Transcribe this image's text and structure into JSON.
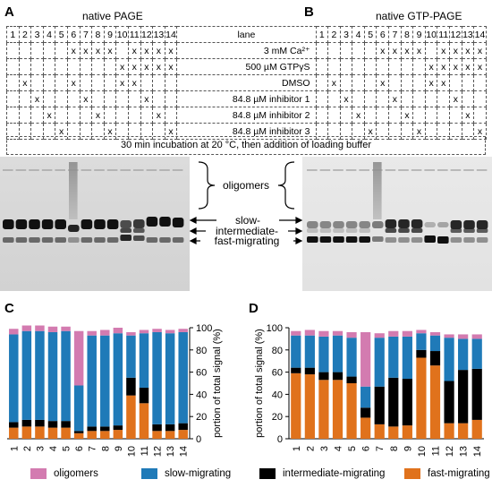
{
  "figure": {
    "panels": {
      "A": "A",
      "B": "B",
      "C": "C",
      "D": "D"
    },
    "gel_a_title": "native PAGE",
    "gel_b_title": "native GTP-PAGE",
    "lanes": [
      "1",
      "2",
      "3",
      "4",
      "5",
      "6",
      "7",
      "8",
      "9",
      "10",
      "11",
      "12",
      "13",
      "14"
    ],
    "lane_header": "lane",
    "conditions": [
      {
        "label": "3 mM Ca²⁺",
        "marks": [
          6,
          7,
          8,
          9,
          11,
          12,
          13,
          14
        ]
      },
      {
        "label": "500 µM GTPγS",
        "marks": [
          10,
          11,
          12,
          13,
          14
        ]
      },
      {
        "label": "DMSO",
        "marks": [
          2,
          6,
          10,
          11
        ]
      },
      {
        "label": "84.8 µM inhibitor 1",
        "marks": [
          3,
          7,
          12
        ]
      },
      {
        "label": "84.8 µM inhibitor 2",
        "marks": [
          4,
          8,
          13
        ]
      },
      {
        "label": "84.8 µM inhibitor 3",
        "marks": [
          5,
          9,
          14
        ]
      }
    ],
    "mark_symbol": "x",
    "footer": "30 min incubation at 20 °C, then addition of loading buffer",
    "band_labels": {
      "oligomers": "oligomers",
      "slow": "slow-",
      "intermediate": "intermediate-",
      "fast": "fast-migrating"
    },
    "legend": [
      {
        "name": "oligomers",
        "color": "#d37bb0"
      },
      {
        "name": "slow-migrating",
        "color": "#1f7ab8"
      },
      {
        "name": "intermediate-migrating",
        "color": "#000000"
      },
      {
        "name": "fast-migrating",
        "color": "#e0721c"
      }
    ]
  },
  "chart_data": [
    {
      "panel": "C",
      "type": "bar",
      "stacked": true,
      "categories": [
        "1",
        "2",
        "3",
        "4",
        "5",
        "6",
        "7",
        "8",
        "9",
        "10",
        "11",
        "12",
        "13",
        "14"
      ],
      "ylabel": "portion of total signal (%)",
      "ylim": [
        0,
        100
      ],
      "yticks": [
        0,
        20,
        40,
        60,
        80,
        100
      ],
      "y_axis_side": "right",
      "series": [
        {
          "name": "fast-migrating",
          "color": "#e0721c",
          "values": [
            10,
            11,
            11,
            10,
            10,
            5,
            7,
            7,
            8,
            39,
            32,
            7,
            7,
            8
          ]
        },
        {
          "name": "intermediate-migrating",
          "color": "#000000",
          "values": [
            5,
            6,
            6,
            6,
            6,
            2,
            4,
            4,
            4,
            16,
            14,
            6,
            6,
            6
          ]
        },
        {
          "name": "slow-migrating",
          "color": "#1f7ab8",
          "values": [
            79,
            80,
            80,
            80,
            81,
            41,
            82,
            82,
            83,
            38,
            49,
            83,
            82,
            82
          ]
        },
        {
          "name": "oligomers",
          "color": "#d37bb0",
          "values": [
            5,
            5,
            5,
            5,
            4,
            49,
            4,
            5,
            5,
            3,
            3,
            3,
            3,
            3
          ]
        }
      ]
    },
    {
      "panel": "D",
      "type": "bar",
      "stacked": true,
      "categories": [
        "1",
        "2",
        "3",
        "4",
        "5",
        "6",
        "7",
        "8",
        "9",
        "10",
        "11",
        "12",
        "13",
        "14"
      ],
      "ylabel": "portion of total signal (%)",
      "ylim": [
        0,
        100
      ],
      "yticks": [
        0,
        20,
        40,
        60,
        80,
        100
      ],
      "y_axis_side": "left",
      "series": [
        {
          "name": "fast-migrating",
          "color": "#e0721c",
          "values": [
            59,
            58,
            53,
            53,
            50,
            19,
            13,
            11,
            12,
            73,
            66,
            14,
            14,
            17
          ]
        },
        {
          "name": "intermediate-migrating",
          "color": "#000000",
          "values": [
            5,
            6,
            7,
            7,
            6,
            9,
            34,
            44,
            42,
            7,
            13,
            38,
            48,
            46
          ]
        },
        {
          "name": "slow-migrating",
          "color": "#1f7ab8",
          "values": [
            29,
            29,
            32,
            33,
            35,
            19,
            44,
            37,
            38,
            15,
            14,
            39,
            28,
            27
          ]
        },
        {
          "name": "oligomers",
          "color": "#d37bb0",
          "values": [
            4,
            5,
            5,
            4,
            5,
            49,
            4,
            5,
            5,
            3,
            3,
            3,
            4,
            4
          ]
        }
      ]
    }
  ]
}
